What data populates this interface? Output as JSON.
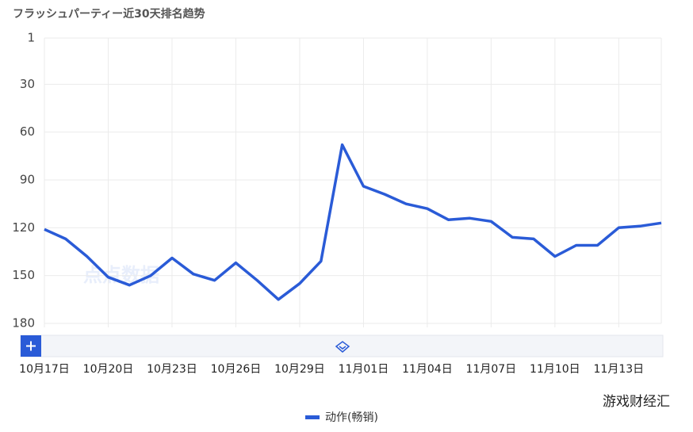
{
  "chart_data": {
    "type": "line",
    "title": "フラッシュパーティー近30天排名趋势",
    "categories": [
      "10月17日",
      null,
      null,
      "10月20日",
      null,
      null,
      "10月23日",
      null,
      null,
      "10月26日",
      null,
      null,
      "10月29日",
      null,
      null,
      "11月01日",
      null,
      null,
      "11月04日",
      null,
      null,
      "11月07日",
      null,
      null,
      "11月10日",
      null,
      null,
      "11月13日",
      null,
      null
    ],
    "series": [
      {
        "name": "动作(畅销)",
        "color": "#2a5bd7",
        "values": [
          121,
          127,
          138,
          151,
          156,
          150,
          139,
          149,
          153,
          142,
          153,
          165,
          155,
          141,
          68,
          94,
          99,
          105,
          108,
          115,
          114,
          116,
          126,
          127,
          138,
          131,
          131,
          120,
          119,
          117
        ]
      }
    ],
    "ylim": [
      1,
      180
    ],
    "yticks": [
      1,
      30,
      60,
      90,
      120,
      150,
      180
    ],
    "y_reversed": true,
    "grid": true,
    "legend": "bottom"
  },
  "brand_watermark": "点点数据",
  "footer_watermark": "游戏财经汇"
}
